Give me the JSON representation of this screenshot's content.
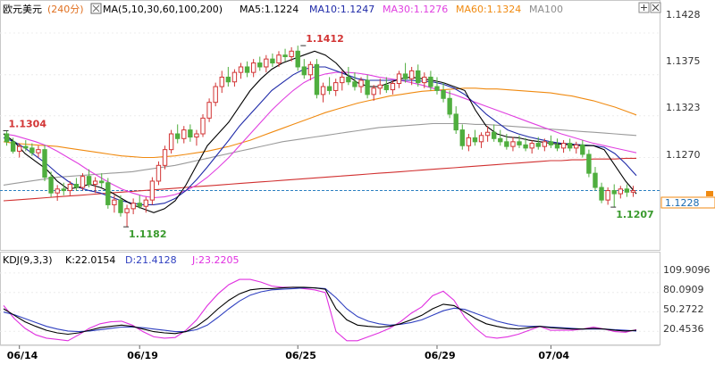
{
  "header": {
    "symbol": "欧元美元",
    "period": "(240分)",
    "ma_label": "MA(5,10,30,60,100,200)",
    "ma_values": [
      {
        "text": "MA5:1.1224",
        "color": "#000000"
      },
      {
        "text": "MA10:1.1247",
        "color": "#1f2aa8"
      },
      {
        "text": "MA30:1.1276",
        "color": "#e040e0"
      },
      {
        "text": "MA60:1.1324",
        "color": "#f08a10"
      },
      {
        "text": "MA100",
        "color": "#8c8c8c"
      }
    ]
  },
  "colors": {
    "up": "#d23434",
    "down": "#4fae3e",
    "ma5": "#000000",
    "ma10": "#1f2aa8",
    "ma30": "#e040e0",
    "ma60": "#f08a10",
    "ma100": "#9a9a9a",
    "ma200": "#d13030",
    "k": "#000000",
    "d": "#3040c0",
    "j": "#e030e0",
    "current": "#2a7fc0"
  },
  "chart_data": {
    "type": "candlestick",
    "price_axis": {
      "ticks": [
        "1.1428",
        "1.1375",
        "1.1323",
        "1.1270"
      ],
      "ylim": [
        1.1155,
        1.1445
      ]
    },
    "current_price": "1.1228",
    "x_ticks": [
      "06/14",
      "06/19",
      "06/25",
      "06/29",
      "07/04"
    ],
    "x_tick_index": [
      2,
      21,
      46,
      68,
      86
    ],
    "annotations": [
      {
        "text": "1.1304",
        "value": 1.1304,
        "index": 0
      },
      {
        "text": "1.1182",
        "value": 1.1182,
        "index": 19
      },
      {
        "text": "1.1412",
        "value": 1.1412,
        "index": 47
      },
      {
        "text": "1.1207",
        "value": 1.1207,
        "index": 96
      }
    ],
    "candles": [
      [
        1.13,
        1.1304,
        1.1285,
        1.129
      ],
      [
        1.129,
        1.1295,
        1.1275,
        1.1278
      ],
      [
        1.1278,
        1.1288,
        1.127,
        1.1284
      ],
      [
        1.1284,
        1.1292,
        1.1278,
        1.1282
      ],
      [
        1.1282,
        1.1288,
        1.1272,
        1.1276
      ],
      [
        1.1276,
        1.1285,
        1.127,
        1.128
      ],
      [
        1.128,
        1.1286,
        1.124,
        1.1245
      ],
      [
        1.1245,
        1.1252,
        1.122,
        1.1225
      ],
      [
        1.1225,
        1.1235,
        1.1215,
        1.123
      ],
      [
        1.123,
        1.1238,
        1.1222,
        1.1228
      ],
      [
        1.1228,
        1.124,
        1.1222,
        1.1236
      ],
      [
        1.1236,
        1.1244,
        1.1228,
        1.1232
      ],
      [
        1.1232,
        1.125,
        1.1228,
        1.1246
      ],
      [
        1.1246,
        1.1255,
        1.1232,
        1.1236
      ],
      [
        1.1236,
        1.1245,
        1.1225,
        1.124
      ],
      [
        1.124,
        1.125,
        1.1232,
        1.1238
      ],
      [
        1.1238,
        1.1244,
        1.1205,
        1.121
      ],
      [
        1.121,
        1.1222,
        1.12,
        1.1216
      ],
      [
        1.1216,
        1.1222,
        1.1195,
        1.12
      ],
      [
        1.12,
        1.121,
        1.1182,
        1.1205
      ],
      [
        1.1205,
        1.1218,
        1.1198,
        1.1212
      ],
      [
        1.1212,
        1.1222,
        1.1205,
        1.1208
      ],
      [
        1.1208,
        1.122,
        1.12,
        1.1216
      ],
      [
        1.1216,
        1.1245,
        1.121,
        1.124
      ],
      [
        1.124,
        1.1265,
        1.1235,
        1.126
      ],
      [
        1.126,
        1.1285,
        1.1255,
        1.128
      ],
      [
        1.128,
        1.1305,
        1.1275,
        1.13
      ],
      [
        1.13,
        1.1312,
        1.1288,
        1.1294
      ],
      [
        1.1294,
        1.131,
        1.1288,
        1.1305
      ],
      [
        1.1305,
        1.1312,
        1.129,
        1.1296
      ],
      [
        1.1296,
        1.1305,
        1.1285,
        1.13
      ],
      [
        1.13,
        1.1325,
        1.1296,
        1.132
      ],
      [
        1.132,
        1.1345,
        1.1315,
        1.134
      ],
      [
        1.134,
        1.1365,
        1.1335,
        1.136
      ],
      [
        1.136,
        1.138,
        1.1352,
        1.1372
      ],
      [
        1.1372,
        1.1385,
        1.136,
        1.1366
      ],
      [
        1.1366,
        1.1382,
        1.136,
        1.1378
      ],
      [
        1.1378,
        1.139,
        1.137,
        1.1385
      ],
      [
        1.1385,
        1.1392,
        1.1372,
        1.1378
      ],
      [
        1.1378,
        1.1395,
        1.1372,
        1.139
      ],
      [
        1.139,
        1.1398,
        1.138,
        1.1385
      ],
      [
        1.1385,
        1.14,
        1.1378,
        1.1395
      ],
      [
        1.1395,
        1.1402,
        1.1385,
        1.139
      ],
      [
        1.139,
        1.1405,
        1.1385,
        1.14
      ],
      [
        1.14,
        1.1408,
        1.1392,
        1.1398
      ],
      [
        1.1398,
        1.141,
        1.1392,
        1.1405
      ],
      [
        1.1405,
        1.1412,
        1.138,
        1.1385
      ],
      [
        1.1385,
        1.1395,
        1.137,
        1.1375
      ],
      [
        1.1375,
        1.1392,
        1.1368,
        1.1388
      ],
      [
        1.1388,
        1.1395,
        1.1345,
        1.135
      ],
      [
        1.135,
        1.1365,
        1.134,
        1.136
      ],
      [
        1.136,
        1.1372,
        1.135,
        1.1355
      ],
      [
        1.1355,
        1.137,
        1.1348,
        1.1365
      ],
      [
        1.1365,
        1.138,
        1.1355,
        1.1372
      ],
      [
        1.1372,
        1.1385,
        1.1362,
        1.1366
      ],
      [
        1.1366,
        1.1378,
        1.1355,
        1.136
      ],
      [
        1.136,
        1.1372,
        1.1352,
        1.1368
      ],
      [
        1.1368,
        1.1375,
        1.1345,
        1.135
      ],
      [
        1.135,
        1.1362,
        1.1342,
        1.1358
      ],
      [
        1.1358,
        1.137,
        1.135,
        1.1362
      ],
      [
        1.1362,
        1.1372,
        1.1352,
        1.1356
      ],
      [
        1.1356,
        1.1368,
        1.135,
        1.1364
      ],
      [
        1.1364,
        1.138,
        1.1358,
        1.1376
      ],
      [
        1.1376,
        1.139,
        1.1365,
        1.137
      ],
      [
        1.137,
        1.1385,
        1.1362,
        1.138
      ],
      [
        1.138,
        1.1388,
        1.136,
        1.1365
      ],
      [
        1.1365,
        1.1378,
        1.1358,
        1.1372
      ],
      [
        1.1372,
        1.138,
        1.1355,
        1.136
      ],
      [
        1.136,
        1.1372,
        1.135,
        1.1355
      ],
      [
        1.1355,
        1.1365,
        1.134,
        1.1345
      ],
      [
        1.1345,
        1.1355,
        1.132,
        1.1325
      ],
      [
        1.1325,
        1.1335,
        1.13,
        1.1305
      ],
      [
        1.1305,
        1.1312,
        1.128,
        1.1285
      ],
      [
        1.1285,
        1.13,
        1.1278,
        1.1295
      ],
      [
        1.1295,
        1.1305,
        1.1285,
        1.129
      ],
      [
        1.129,
        1.1302,
        1.1282,
        1.1298
      ],
      [
        1.1298,
        1.131,
        1.129,
        1.1302
      ],
      [
        1.1302,
        1.1312,
        1.129,
        1.1294
      ],
      [
        1.1294,
        1.1305,
        1.1285,
        1.129
      ],
      [
        1.129,
        1.13,
        1.128,
        1.1284
      ],
      [
        1.1284,
        1.1296,
        1.1278,
        1.129
      ],
      [
        1.129,
        1.1298,
        1.1282,
        1.1286
      ],
      [
        1.1286,
        1.1295,
        1.1278,
        1.1282
      ],
      [
        1.1282,
        1.1292,
        1.1275,
        1.1288
      ],
      [
        1.1288,
        1.1296,
        1.128,
        1.1284
      ],
      [
        1.1284,
        1.1294,
        1.1278,
        1.129
      ],
      [
        1.129,
        1.1298,
        1.1282,
        1.1286
      ],
      [
        1.1286,
        1.1294,
        1.1278,
        1.1282
      ],
      [
        1.1282,
        1.1292,
        1.1276,
        1.1288
      ],
      [
        1.1288,
        1.1294,
        1.1278,
        1.1282
      ],
      [
        1.1282,
        1.129,
        1.1275,
        1.1286
      ],
      [
        1.1286,
        1.1292,
        1.127,
        1.1274
      ],
      [
        1.1274,
        1.128,
        1.1245,
        1.125
      ],
      [
        1.125,
        1.1258,
        1.1228,
        1.1232
      ],
      [
        1.1232,
        1.1238,
        1.1212,
        1.1216
      ],
      [
        1.1216,
        1.1232,
        1.121,
        1.1228
      ],
      [
        1.1228,
        1.1236,
        1.1207,
        1.1224
      ],
      [
        1.1224,
        1.1234,
        1.1218,
        1.123
      ],
      [
        1.123,
        1.1236,
        1.122,
        1.1226
      ],
      [
        1.1226,
        1.1234,
        1.122,
        1.1228
      ]
    ],
    "moving_averages": {
      "ma5": [
        1.13,
        1.129,
        1.1275,
        1.1265,
        1.1255,
        1.124,
        1.123,
        1.1232,
        1.1236,
        1.1232,
        1.1226,
        1.1218,
        1.121,
        1.1205,
        1.12,
        1.1205,
        1.1215,
        1.1235,
        1.126,
        1.1285,
        1.13,
        1.1315,
        1.1335,
        1.1355,
        1.137,
        1.1382,
        1.139,
        1.1395,
        1.14,
        1.1405,
        1.14,
        1.139,
        1.1375,
        1.1365,
        1.136,
        1.136,
        1.1365,
        1.137,
        1.1372,
        1.137,
        1.1368,
        1.1365,
        1.136,
        1.1355,
        1.133,
        1.131,
        1.13,
        1.1296,
        1.1295,
        1.1292,
        1.129,
        1.1288,
        1.1287,
        1.1286,
        1.1285,
        1.1285,
        1.128,
        1.126,
        1.124,
        1.1224
      ],
      "ma10": [
        1.1295,
        1.129,
        1.1282,
        1.1272,
        1.1262,
        1.125,
        1.124,
        1.1232,
        1.1228,
        1.1225,
        1.122,
        1.1215,
        1.1212,
        1.121,
        1.121,
        1.1212,
        1.1218,
        1.1228,
        1.1242,
        1.1258,
        1.1275,
        1.1292,
        1.131,
        1.1325,
        1.134,
        1.1355,
        1.1365,
        1.1375,
        1.1382,
        1.1385,
        1.1385,
        1.138,
        1.1375,
        1.137,
        1.1368,
        1.1368,
        1.1368,
        1.1368,
        1.1368,
        1.1367,
        1.1366,
        1.1363,
        1.1358,
        1.135,
        1.1338,
        1.1325,
        1.1315,
        1.1305,
        1.13,
        1.1296,
        1.1293,
        1.129,
        1.1288,
        1.1287,
        1.1286,
        1.1285,
        1.1283,
        1.1275,
        1.1262,
        1.1247
      ],
      "ma30": [
        1.13,
        1.1298,
        1.1294,
        1.129,
        1.1285,
        1.1278,
        1.127,
        1.1262,
        1.1253,
        1.1245,
        1.1237,
        1.123,
        1.1225,
        1.1221,
        1.1219,
        1.122,
        1.1223,
        1.1228,
        1.1235,
        1.1245,
        1.1257,
        1.127,
        1.1285,
        1.13,
        1.1315,
        1.133,
        1.1343,
        1.1355,
        1.1365,
        1.1372,
        1.1376,
        1.1378,
        1.1378,
        1.1377,
        1.1375,
        1.1372,
        1.137,
        1.1368,
        1.1365,
        1.1362,
        1.1358,
        1.1354,
        1.135,
        1.1345,
        1.134,
        1.1335,
        1.133,
        1.1325,
        1.132,
        1.1315,
        1.131,
        1.1305,
        1.13,
        1.1296,
        1.1292,
        1.1288,
        1.1285,
        1.1282,
        1.1279,
        1.1276
      ],
      "ma60": [
        1.129,
        1.1288,
        1.1287,
        1.1286,
        1.1285,
        1.1284,
        1.1282,
        1.128,
        1.1278,
        1.1276,
        1.1274,
        1.1272,
        1.1271,
        1.127,
        1.127,
        1.1271,
        1.1272,
        1.1274,
        1.1276,
        1.1278,
        1.1281,
        1.1284,
        1.1288,
        1.1292,
        1.1297,
        1.1302,
        1.1307,
        1.1312,
        1.1317,
        1.1322,
        1.1327,
        1.1331,
        1.1335,
        1.1339,
        1.1342,
        1.1345,
        1.1348,
        1.135,
        1.1352,
        1.1354,
        1.1355,
        1.1356,
        1.1357,
        1.1358,
        1.1358,
        1.1357,
        1.1357,
        1.1356,
        1.1355,
        1.1354,
        1.1353,
        1.1352,
        1.135,
        1.1348,
        1.1345,
        1.1342,
        1.1338,
        1.1334,
        1.1329,
        1.1324
      ],
      "ma100": [
        1.1235,
        1.1237,
        1.1239,
        1.1241,
        1.1243,
        1.1245,
        1.1246,
        1.1247,
        1.1248,
        1.1249,
        1.125,
        1.1251,
        1.1252,
        1.1254,
        1.1256,
        1.1258,
        1.126,
        1.1263,
        1.1266,
        1.1269,
        1.1272,
        1.1275,
        1.1278,
        1.1281,
        1.1284,
        1.1287,
        1.129,
        1.1292,
        1.1294,
        1.1296,
        1.1298,
        1.13,
        1.1302,
        1.1304,
        1.1306,
        1.1308,
        1.1309,
        1.131,
        1.1311,
        1.1312,
        1.1313,
        1.1313,
        1.1313,
        1.1313,
        1.1312,
        1.1312,
        1.1311,
        1.131,
        1.1309,
        1.1308,
        1.1307,
        1.1306,
        1.1305,
        1.1304,
        1.1303,
        1.1302,
        1.1301,
        1.13,
        1.1299,
        1.1298
      ],
      "ma200": [
        1.1215,
        1.1216,
        1.1217,
        1.1218,
        1.1219,
        1.122,
        1.1221,
        1.1222,
        1.1223,
        1.1224,
        1.1225,
        1.1226,
        1.1227,
        1.1228,
        1.1229,
        1.123,
        1.1231,
        1.1232,
        1.1233,
        1.1234,
        1.1235,
        1.1236,
        1.1237,
        1.1238,
        1.1239,
        1.124,
        1.1241,
        1.1242,
        1.1243,
        1.1244,
        1.1245,
        1.1246,
        1.1247,
        1.1248,
        1.1249,
        1.125,
        1.1251,
        1.1252,
        1.1253,
        1.1254,
        1.1255,
        1.1256,
        1.1257,
        1.1258,
        1.1259,
        1.126,
        1.1261,
        1.1262,
        1.1263,
        1.1264,
        1.1265,
        1.1266,
        1.1266,
        1.1267,
        1.1267,
        1.1268,
        1.1268,
        1.1268,
        1.1269,
        1.1269
      ]
    },
    "kdj": {
      "label": "KDJ(9,3,3)",
      "k_text": "K:22.0154",
      "d_text": "D:21.4128",
      "j_text": "J:23.2205",
      "axis_ticks": [
        "109.9096",
        "80.0909",
        "50.2722",
        "20.4536"
      ],
      "ylim": [
        3,
        118
      ],
      "k": [
        55,
        45,
        35,
        28,
        22,
        18,
        16,
        18,
        22,
        26,
        28,
        30,
        28,
        24,
        20,
        18,
        17,
        20,
        28,
        40,
        55,
        68,
        78,
        84,
        86,
        86,
        87,
        88,
        88,
        87,
        85,
        55,
        38,
        30,
        28,
        27,
        28,
        32,
        38,
        45,
        55,
        62,
        60,
        50,
        40,
        32,
        28,
        25,
        24,
        26,
        28,
        26,
        25,
        24,
        24,
        25,
        24,
        22,
        21,
        22
      ],
      "d": [
        50,
        46,
        40,
        34,
        28,
        24,
        21,
        20,
        21,
        23,
        25,
        27,
        27,
        26,
        24,
        22,
        20,
        20,
        23,
        30,
        42,
        55,
        67,
        76,
        81,
        84,
        85,
        86,
        87,
        87,
        86,
        72,
        55,
        43,
        36,
        32,
        30,
        31,
        34,
        38,
        45,
        52,
        56,
        54,
        48,
        42,
        36,
        32,
        29,
        28,
        28,
        27,
        26,
        25,
        24,
        24,
        24,
        23,
        22,
        21
      ],
      "j": [
        60,
        40,
        25,
        15,
        10,
        8,
        6,
        15,
        25,
        32,
        35,
        36,
        30,
        20,
        12,
        10,
        11,
        22,
        38,
        60,
        78,
        92,
        100,
        100,
        96,
        90,
        88,
        88,
        86,
        84,
        80,
        20,
        6,
        6,
        12,
        18,
        25,
        35,
        48,
        58,
        75,
        82,
        68,
        42,
        25,
        12,
        10,
        12,
        16,
        22,
        28,
        22,
        22,
        22,
        24,
        27,
        24,
        20,
        19,
        23
      ]
    }
  }
}
